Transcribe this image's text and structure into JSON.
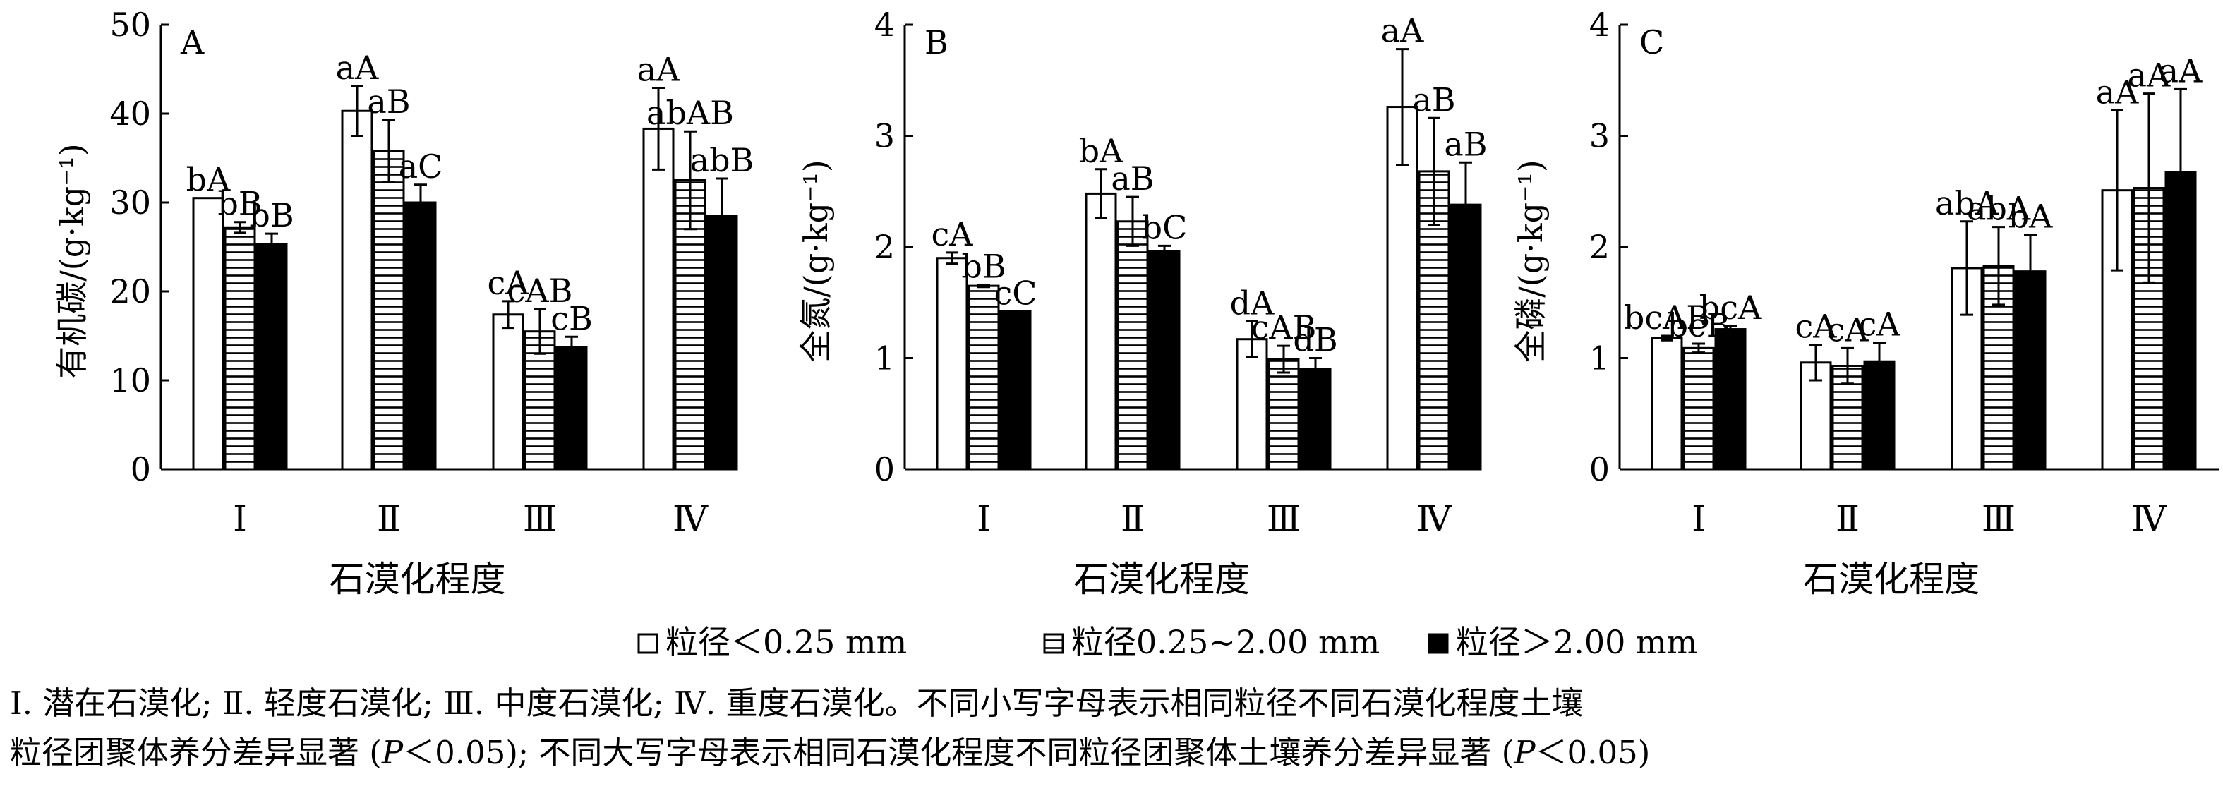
{
  "chart_data": [
    {
      "type": "bar",
      "panel_label": "A",
      "xlabel": "石漠化程度",
      "ylabel": "有机碳/(g·kg⁻¹)",
      "ylim": [
        0,
        50
      ],
      "yticks": [
        "0",
        "10",
        "20",
        "30",
        "40",
        "50"
      ],
      "categories": [
        "Ⅰ",
        "Ⅱ",
        "Ⅲ",
        "Ⅳ"
      ],
      "series": [
        {
          "name": "粒径＜0.25 mm",
          "values": [
            30.5,
            40.3,
            17.4,
            38.3
          ],
          "errors": [
            0.0,
            2.8,
            1.5,
            4.6
          ],
          "labels": [
            "bA",
            "aA",
            "cA",
            "aA"
          ]
        },
        {
          "name": "粒径0.25~2.00 mm",
          "values": [
            27.2,
            35.8,
            15.5,
            32.5
          ],
          "errors": [
            0.6,
            3.5,
            2.5,
            5.5
          ],
          "labels": [
            "bB",
            "aB",
            "cAB",
            "abAB"
          ]
        },
        {
          "name": "粒径＞2.00 mm",
          "values": [
            25.3,
            30.0,
            13.7,
            28.5
          ],
          "errors": [
            1.2,
            2.0,
            1.2,
            4.2
          ],
          "labels": [
            "bB",
            "aC",
            "cB",
            "abB"
          ]
        }
      ]
    },
    {
      "type": "bar",
      "panel_label": "B",
      "xlabel": "石漠化程度",
      "ylabel": "全氮/(g·kg⁻¹)",
      "ylim": [
        0,
        4
      ],
      "yticks": [
        "0",
        "1",
        "2",
        "3",
        "4"
      ],
      "categories": [
        "Ⅰ",
        "Ⅱ",
        "Ⅲ",
        "Ⅳ"
      ],
      "series": [
        {
          "name": "粒径＜0.25 mm",
          "values": [
            1.9,
            2.48,
            1.17,
            3.26
          ],
          "errors": [
            0.05,
            0.22,
            0.16,
            0.52
          ],
          "labels": [
            "cA",
            "bA",
            "dA",
            "aA"
          ]
        },
        {
          "name": "粒径0.25~2.00 mm",
          "values": [
            1.65,
            2.23,
            0.99,
            2.68
          ],
          "errors": [
            0.01,
            0.22,
            0.12,
            0.48
          ],
          "labels": [
            "bB",
            "aB",
            "cAB",
            "aB"
          ]
        },
        {
          "name": "粒径＞2.00 mm",
          "values": [
            1.42,
            1.96,
            0.9,
            2.38
          ],
          "errors": [
            0.0,
            0.05,
            0.1,
            0.38
          ],
          "labels": [
            "cC",
            "bC",
            "dB",
            "aB"
          ]
        }
      ]
    },
    {
      "type": "bar",
      "panel_label": "C",
      "xlabel": "石漠化程度",
      "ylabel": "全磷/(g·kg⁻¹)",
      "ylim": [
        0,
        4
      ],
      "yticks": [
        "0",
        "1",
        "2",
        "3",
        "4"
      ],
      "categories": [
        "Ⅰ",
        "Ⅱ",
        "Ⅲ",
        "Ⅳ"
      ],
      "series": [
        {
          "name": "粒径＜0.25 mm",
          "values": [
            1.18,
            0.96,
            1.81,
            2.51
          ],
          "errors": [
            0.02,
            0.16,
            0.42,
            0.72
          ],
          "labels": [
            "bcAB",
            "cA",
            "abA",
            "aA"
          ]
        },
        {
          "name": "粒径0.25~2.00 mm",
          "values": [
            1.09,
            0.93,
            1.83,
            2.53
          ],
          "errors": [
            0.04,
            0.16,
            0.35,
            0.85
          ],
          "labels": [
            "bcB",
            "cA",
            "abA",
            "aA"
          ]
        },
        {
          "name": "粒径＞2.00 mm",
          "values": [
            1.26,
            0.97,
            1.78,
            2.67
          ],
          "errors": [
            0.03,
            0.17,
            0.33,
            0.75
          ],
          "labels": [
            "bcA",
            "cA",
            "bA",
            "aA"
          ]
        }
      ]
    }
  ],
  "legend": [
    {
      "label": "粒径＜0.25 mm",
      "pattern": "white"
    },
    {
      "label": "粒径0.25~2.00 mm",
      "pattern": "hatched"
    },
    {
      "label": "粒径＞2.00 mm",
      "pattern": "black"
    }
  ],
  "caption": {
    "line1": "Ⅰ. 潜在石漠化; Ⅱ. 轻度石漠化; Ⅲ. 中度石漠化; Ⅳ. 重度石漠化。不同小写字母表示相同粒径不同石漠化程度土壤",
    "line2_a": "粒径团聚体养分差异显著 (",
    "line2_p1": "P",
    "line2_b": "＜0.05); 不同大写字母表示相同石漠化程度不同粒径团聚体土壤养分差异显著 (",
    "line2_p2": "P",
    "line2_c": "＜0.05)"
  }
}
